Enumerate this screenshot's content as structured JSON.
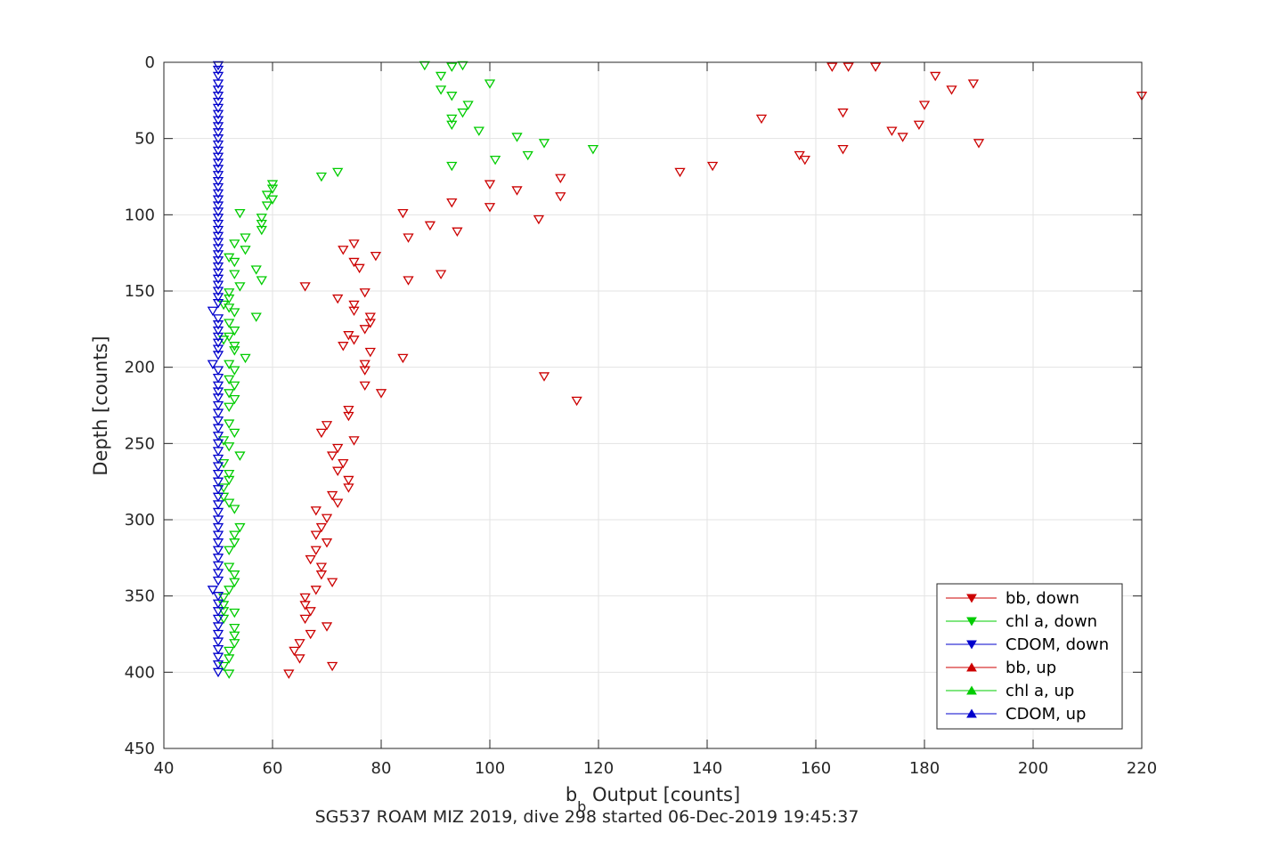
{
  "chart_data": {
    "type": "scatter",
    "xlabel_main": "b",
    "xlabel_sub": "b",
    "xlabel_rest": " Output [counts]",
    "ylabel": "Depth [counts]",
    "subtitle": "SG537 ROAM MIZ 2019, dive 298 started 06-Dec-2019 19:45:37",
    "xlim": [
      40,
      220
    ],
    "ylim": [
      0,
      450
    ],
    "y_reversed": true,
    "grid": true,
    "xticks": [
      40,
      60,
      80,
      100,
      120,
      140,
      160,
      180,
      200,
      220
    ],
    "yticks": [
      0,
      50,
      100,
      150,
      200,
      250,
      300,
      350,
      400,
      450
    ],
    "legend_position": "bottom-right",
    "series": [
      {
        "name": "bb, down",
        "color": "#cc0000",
        "marker": "triangle-down",
        "points": [
          [
            163,
            3
          ],
          [
            166,
            3
          ],
          [
            171,
            3
          ],
          [
            182,
            9
          ],
          [
            189,
            14
          ],
          [
            185,
            18
          ],
          [
            220,
            22
          ],
          [
            180,
            28
          ],
          [
            165,
            33
          ],
          [
            150,
            37
          ],
          [
            179,
            41
          ],
          [
            174,
            45
          ],
          [
            176,
            49
          ],
          [
            190,
            53
          ],
          [
            165,
            57
          ],
          [
            157,
            61
          ],
          [
            158,
            64
          ],
          [
            141,
            68
          ],
          [
            135,
            72
          ],
          [
            113,
            76
          ],
          [
            100,
            80
          ],
          [
            105,
            84
          ],
          [
            113,
            88
          ],
          [
            93,
            92
          ],
          [
            100,
            95
          ],
          [
            84,
            99
          ],
          [
            109,
            103
          ],
          [
            89,
            107
          ],
          [
            94,
            111
          ],
          [
            85,
            115
          ],
          [
            75,
            119
          ],
          [
            73,
            123
          ],
          [
            79,
            127
          ],
          [
            75,
            131
          ],
          [
            76,
            135
          ],
          [
            91,
            139
          ],
          [
            85,
            143
          ],
          [
            66,
            147
          ],
          [
            77,
            151
          ],
          [
            72,
            155
          ],
          [
            75,
            159
          ],
          [
            75,
            163
          ],
          [
            78,
            167
          ],
          [
            78,
            171
          ],
          [
            77,
            175
          ],
          [
            74,
            179
          ],
          [
            75,
            182
          ],
          [
            73,
            186
          ],
          [
            78,
            190
          ],
          [
            84,
            194
          ],
          [
            77,
            198
          ],
          [
            77,
            202
          ],
          [
            110,
            206
          ],
          [
            77,
            212
          ],
          [
            80,
            217
          ],
          [
            116,
            222
          ],
          [
            74,
            228
          ],
          [
            74,
            232
          ],
          [
            70,
            238
          ],
          [
            69,
            243
          ],
          [
            75,
            248
          ],
          [
            72,
            253
          ],
          [
            71,
            258
          ],
          [
            73,
            263
          ],
          [
            72,
            268
          ],
          [
            74,
            274
          ],
          [
            74,
            279
          ],
          [
            71,
            284
          ],
          [
            72,
            289
          ],
          [
            68,
            294
          ],
          [
            70,
            299
          ],
          [
            69,
            305
          ],
          [
            68,
            310
          ],
          [
            70,
            315
          ],
          [
            68,
            320
          ],
          [
            67,
            326
          ],
          [
            69,
            331
          ],
          [
            69,
            336
          ],
          [
            71,
            341
          ],
          [
            68,
            346
          ],
          [
            66,
            351
          ],
          [
            66,
            356
          ],
          [
            67,
            360
          ],
          [
            66,
            365
          ],
          [
            70,
            370
          ],
          [
            67,
            375
          ],
          [
            65,
            381
          ],
          [
            64,
            386
          ],
          [
            65,
            391
          ],
          [
            71,
            396
          ],
          [
            63,
            401
          ]
        ]
      },
      {
        "name": "chl a, down",
        "color": "#00cc00",
        "marker": "triangle-down",
        "points": [
          [
            88,
            2
          ],
          [
            93,
            3
          ],
          [
            95,
            2
          ],
          [
            91,
            9
          ],
          [
            100,
            14
          ],
          [
            91,
            18
          ],
          [
            93,
            22
          ],
          [
            96,
            28
          ],
          [
            95,
            33
          ],
          [
            93,
            37
          ],
          [
            93,
            41
          ],
          [
            98,
            45
          ],
          [
            105,
            49
          ],
          [
            110,
            53
          ],
          [
            119,
            57
          ],
          [
            107,
            61
          ],
          [
            101,
            64
          ],
          [
            93,
            68
          ],
          [
            72,
            72
          ],
          [
            69,
            75
          ],
          [
            60,
            80
          ],
          [
            60,
            83
          ],
          [
            59,
            87
          ],
          [
            60,
            90
          ],
          [
            59,
            94
          ],
          [
            54,
            99
          ],
          [
            58,
            102
          ],
          [
            58,
            106
          ],
          [
            58,
            110
          ],
          [
            55,
            115
          ],
          [
            53,
            119
          ],
          [
            55,
            123
          ],
          [
            52,
            128
          ],
          [
            53,
            131
          ],
          [
            57,
            136
          ],
          [
            53,
            139
          ],
          [
            58,
            143
          ],
          [
            54,
            147
          ],
          [
            52,
            151
          ],
          [
            52,
            155
          ],
          [
            51,
            159
          ],
          [
            52,
            161
          ],
          [
            53,
            164
          ],
          [
            57,
            167
          ],
          [
            52,
            171
          ],
          [
            53,
            176
          ],
          [
            52,
            180
          ],
          [
            51,
            182
          ],
          [
            53,
            186
          ],
          [
            53,
            189
          ],
          [
            55,
            194
          ],
          [
            52,
            198
          ],
          [
            53,
            202
          ],
          [
            52,
            208
          ],
          [
            53,
            212
          ],
          [
            52,
            217
          ],
          [
            53,
            221
          ],
          [
            52,
            226
          ],
          [
            52,
            237
          ],
          [
            53,
            243
          ],
          [
            51,
            248
          ],
          [
            52,
            252
          ],
          [
            54,
            258
          ],
          [
            51,
            263
          ],
          [
            52,
            270
          ],
          [
            52,
            274
          ],
          [
            51,
            279
          ],
          [
            51,
            285
          ],
          [
            52,
            289
          ],
          [
            53,
            293
          ],
          [
            54,
            305
          ],
          [
            53,
            310
          ],
          [
            53,
            315
          ],
          [
            52,
            320
          ],
          [
            52,
            331
          ],
          [
            53,
            336
          ],
          [
            53,
            341
          ],
          [
            52,
            346
          ],
          [
            51,
            351
          ],
          [
            51,
            356
          ],
          [
            51,
            360
          ],
          [
            53,
            361
          ],
          [
            51,
            365
          ],
          [
            53,
            371
          ],
          [
            53,
            376
          ],
          [
            53,
            381
          ],
          [
            52,
            386
          ],
          [
            52,
            391
          ],
          [
            51,
            396
          ],
          [
            52,
            401
          ]
        ]
      },
      {
        "name": "CDOM, down",
        "color": "#0000cc",
        "marker": "triangle-down",
        "points": [
          [
            50,
            2
          ],
          [
            50,
            5
          ],
          [
            50,
            9
          ],
          [
            50,
            14
          ],
          [
            50,
            18
          ],
          [
            50,
            22
          ],
          [
            50,
            26
          ],
          [
            50,
            30
          ],
          [
            50,
            34
          ],
          [
            50,
            38
          ],
          [
            50,
            42
          ],
          [
            50,
            46
          ],
          [
            50,
            50
          ],
          [
            50,
            54
          ],
          [
            50,
            58
          ],
          [
            50,
            62
          ],
          [
            50,
            66
          ],
          [
            50,
            70
          ],
          [
            50,
            74
          ],
          [
            50,
            78
          ],
          [
            50,
            82
          ],
          [
            50,
            86
          ],
          [
            50,
            90
          ],
          [
            50,
            94
          ],
          [
            50,
            98
          ],
          [
            50,
            102
          ],
          [
            50,
            106
          ],
          [
            50,
            110
          ],
          [
            50,
            114
          ],
          [
            50,
            118
          ],
          [
            50,
            122
          ],
          [
            50,
            126
          ],
          [
            50,
            130
          ],
          [
            50,
            134
          ],
          [
            50,
            138
          ],
          [
            50,
            142
          ],
          [
            50,
            146
          ],
          [
            50,
            150
          ],
          [
            50,
            154
          ],
          [
            50,
            158
          ],
          [
            49,
            163
          ],
          [
            50,
            168
          ],
          [
            50,
            172
          ],
          [
            50,
            176
          ],
          [
            50,
            180
          ],
          [
            50,
            184
          ],
          [
            50,
            188
          ],
          [
            50,
            192
          ],
          [
            49,
            198
          ],
          [
            50,
            202
          ],
          [
            50,
            207
          ],
          [
            50,
            212
          ],
          [
            50,
            216
          ],
          [
            50,
            220
          ],
          [
            50,
            225
          ],
          [
            50,
            230
          ],
          [
            50,
            235
          ],
          [
            50,
            240
          ],
          [
            50,
            245
          ],
          [
            50,
            250
          ],
          [
            50,
            255
          ],
          [
            50,
            260
          ],
          [
            50,
            265
          ],
          [
            50,
            270
          ],
          [
            50,
            275
          ],
          [
            50,
            280
          ],
          [
            50,
            285
          ],
          [
            50,
            290
          ],
          [
            50,
            295
          ],
          [
            50,
            300
          ],
          [
            50,
            305
          ],
          [
            50,
            310
          ],
          [
            50,
            315
          ],
          [
            50,
            320
          ],
          [
            50,
            325
          ],
          [
            50,
            330
          ],
          [
            50,
            335
          ],
          [
            50,
            340
          ],
          [
            49,
            346
          ],
          [
            50,
            350
          ],
          [
            50,
            355
          ],
          [
            50,
            360
          ],
          [
            50,
            365
          ],
          [
            50,
            370
          ],
          [
            50,
            375
          ],
          [
            50,
            380
          ],
          [
            50,
            385
          ],
          [
            50,
            390
          ],
          [
            50,
            395
          ],
          [
            50,
            400
          ]
        ]
      },
      {
        "name": "bb, up",
        "color": "#cc0000",
        "marker": "triangle-up",
        "points": []
      },
      {
        "name": "chl a, up",
        "color": "#00cc00",
        "marker": "triangle-up",
        "points": []
      },
      {
        "name": "CDOM, up",
        "color": "#0000cc",
        "marker": "triangle-up",
        "points": []
      }
    ]
  }
}
